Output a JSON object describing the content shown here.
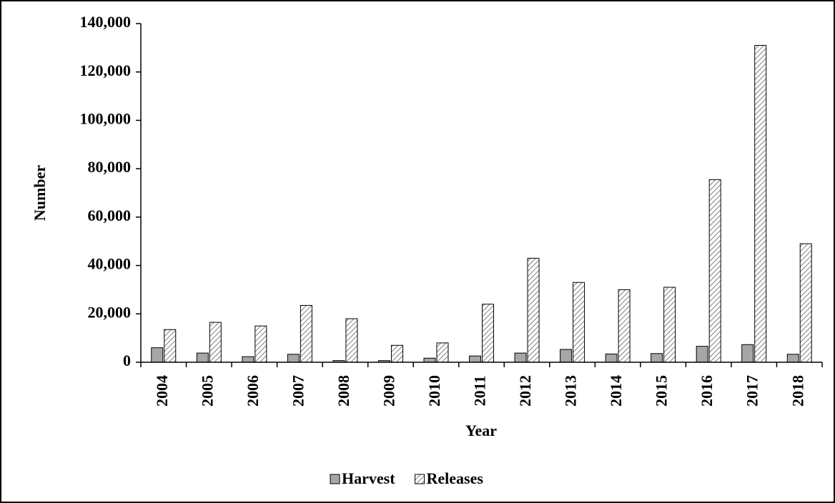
{
  "chart_data": {
    "type": "bar",
    "x_label": "Year",
    "y_label": "Number",
    "categories": [
      "2004",
      "2005",
      "2006",
      "2007",
      "2008",
      "2009",
      "2010",
      "2011",
      "2012",
      "2013",
      "2014",
      "2015",
      "2016",
      "2017",
      "2018"
    ],
    "series": [
      {
        "name": "Harvest",
        "color": "#a6a6a6",
        "values": [
          6000,
          3800,
          2300,
          3300,
          700,
          700,
          1700,
          2600,
          3800,
          5300,
          3400,
          3600,
          6600,
          7300,
          3300
        ]
      },
      {
        "name": "Releases",
        "color": "#7f7f7f",
        "pattern": "hatch",
        "values": [
          13500,
          16500,
          15000,
          23500,
          18000,
          7000,
          8000,
          24000,
          43000,
          33000,
          30000,
          31000,
          75500,
          131000,
          49000
        ]
      }
    ],
    "ylim": [
      0,
      140000
    ],
    "yticks": [
      0,
      {
        "value": 20000,
        "label": "20,000"
      },
      {
        "value": 40000,
        "label": "40,000"
      },
      {
        "value": 60000,
        "label": "60,000"
      },
      {
        "value": 80000,
        "label": "80,000"
      },
      {
        "value": 100000,
        "label": "100,000"
      },
      {
        "value": 120000,
        "label": "120,000"
      },
      {
        "value": 140000,
        "label": "140,000"
      }
    ],
    "grid": false,
    "legend": "bottom"
  }
}
